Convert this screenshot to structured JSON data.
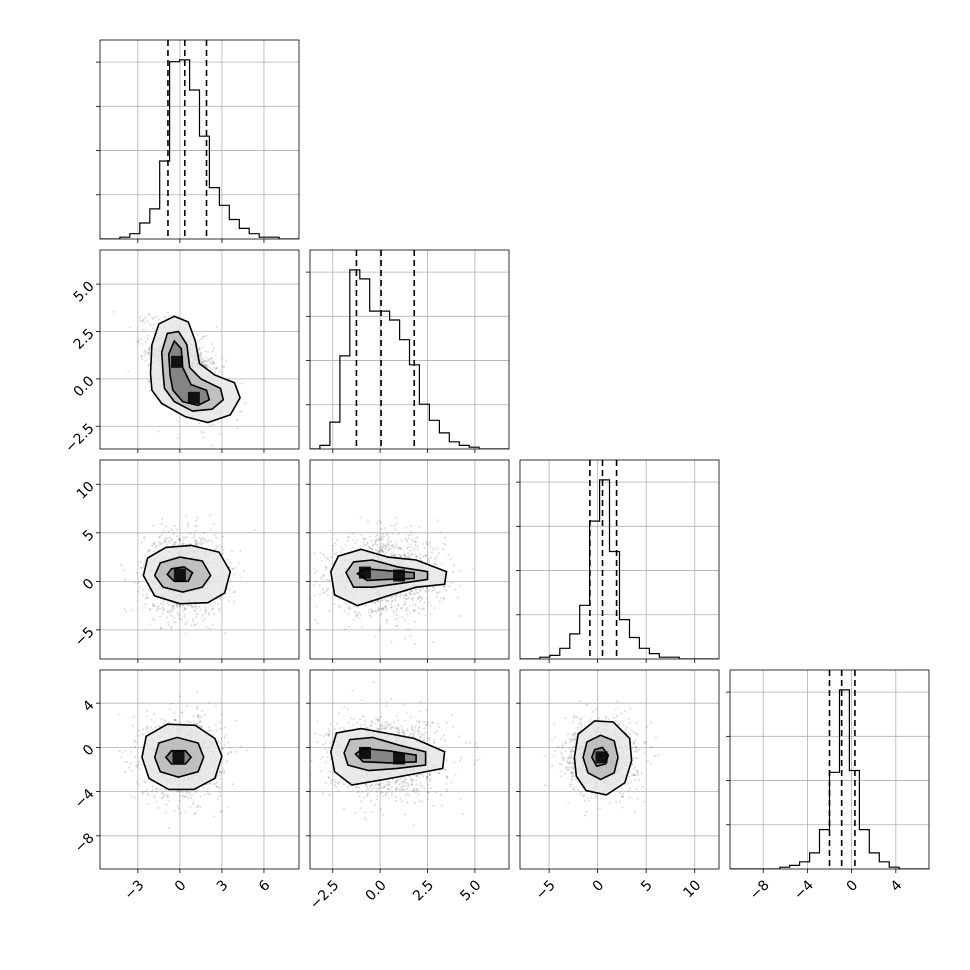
{
  "chart_data": {
    "type": "corner",
    "grid": true,
    "parameters": [
      {
        "index": 0,
        "range": [
          -5.7,
          8.5
        ],
        "ticks": [
          -3,
          0,
          3,
          6
        ],
        "tick_labels": [
          "−3",
          "0",
          "3",
          "6"
        ],
        "hist": {
          "edges_start": -5.7,
          "bin_width": 0.71,
          "counts": [
            0,
            0,
            1,
            3,
            9,
            17,
            44,
            100,
            101,
            84,
            58,
            29,
            19,
            11,
            6,
            3,
            1,
            1,
            0,
            0
          ]
        },
        "quantiles": [
          -0.85,
          0.35,
          1.9
        ]
      },
      {
        "index": 1,
        "range": [
          -3.7,
          6.8
        ],
        "ticks": [
          -2.5,
          0.0,
          2.5,
          5.0
        ],
        "tick_labels": [
          "−2.5",
          "0.0",
          "2.5",
          "5.0"
        ],
        "hist": {
          "edges_start": -3.7,
          "bin_width": 0.525,
          "counts": [
            0,
            2,
            15,
            52,
            100,
            95,
            77,
            77,
            72,
            61,
            47,
            25,
            16,
            9,
            4,
            2,
            1,
            0,
            0,
            0
          ]
        },
        "quantiles": [
          -1.25,
          0.05,
          1.8
        ]
      },
      {
        "index": 2,
        "range": [
          -8,
          12.5
        ],
        "ticks": [
          -5,
          0,
          5,
          10
        ],
        "tick_labels": [
          "−5",
          "0",
          "5",
          "10"
        ],
        "hist": {
          "edges_start": -8,
          "bin_width": 1.025,
          "counts": [
            0,
            0,
            1,
            2,
            6,
            14,
            30,
            77,
            100,
            60,
            22,
            12,
            6,
            3,
            1,
            1,
            0,
            0,
            0,
            0
          ]
        },
        "quantiles": [
          -0.8,
          0.5,
          1.95
        ]
      },
      {
        "index": 3,
        "range": [
          -11,
          7
        ],
        "ticks": [
          -8,
          -4,
          0,
          4
        ],
        "tick_labels": [
          "−8",
          "−4",
          "0",
          "4"
        ],
        "hist": {
          "edges_start": -11,
          "bin_width": 0.9,
          "counts": [
            0,
            0,
            0,
            0,
            0,
            1,
            2,
            4,
            9,
            22,
            54,
            100,
            55,
            22,
            9,
            4,
            1,
            0,
            0,
            0
          ]
        },
        "quantiles": [
          -2.0,
          -0.9,
          0.3
        ]
      }
    ],
    "pairs": [
      {
        "row": 1,
        "col": 0,
        "mean": [
          0.5,
          0.4
        ],
        "spread": [
          1.3,
          1.2
        ],
        "rho": -0.55,
        "cores": [
          [
            -0.2,
            0.9
          ],
          [
            1.0,
            -1.0
          ]
        ],
        "contours": [
          [
            [
              -2.1,
              0.3
            ],
            [
              -2.0,
              1.8
            ],
            [
              -1.5,
              2.9
            ],
            [
              -0.4,
              3.3
            ],
            [
              0.6,
              3.0
            ],
            [
              1.1,
              2.0
            ],
            [
              1.4,
              0.8
            ],
            [
              2.5,
              0.2
            ],
            [
              3.9,
              -0.2
            ],
            [
              4.3,
              -1.0
            ],
            [
              3.6,
              -1.9
            ],
            [
              2.0,
              -2.3
            ],
            [
              0.4,
              -2.0
            ],
            [
              -1.3,
              -1.3
            ],
            [
              -2.0,
              -0.6
            ]
          ],
          [
            [
              -1.2,
              0.3
            ],
            [
              -1.3,
              1.4
            ],
            [
              -0.9,
              2.4
            ],
            [
              -0.1,
              2.5
            ],
            [
              0.5,
              1.8
            ],
            [
              0.7,
              0.6
            ],
            [
              1.5,
              0.0
            ],
            [
              2.9,
              -0.5
            ],
            [
              3.1,
              -1.1
            ],
            [
              2.3,
              -1.6
            ],
            [
              0.9,
              -1.7
            ],
            [
              -0.4,
              -1.2
            ],
            [
              -1.1,
              -0.5
            ]
          ],
          [
            [
              -0.7,
              0.2
            ],
            [
              -0.8,
              1.3
            ],
            [
              -0.4,
              2.0
            ],
            [
              0.1,
              1.6
            ],
            [
              0.2,
              0.6
            ],
            [
              0.8,
              -0.3
            ],
            [
              1.9,
              -0.6
            ],
            [
              2.1,
              -1.1
            ],
            [
              1.3,
              -1.4
            ],
            [
              0.2,
              -1.2
            ],
            [
              -0.5,
              -0.6
            ]
          ]
        ]
      },
      {
        "row": 2,
        "col": 0,
        "mean": [
          0.3,
          0.7
        ],
        "spread": [
          1.4,
          2.1
        ],
        "rho": 0.0,
        "cores": [
          [
            0.0,
            0.7
          ]
        ],
        "contours": [
          [
            [
              -2.6,
              0.6
            ],
            [
              -2.3,
              2.4
            ],
            [
              -1.0,
              3.5
            ],
            [
              0.8,
              3.7
            ],
            [
              2.8,
              3.0
            ],
            [
              3.6,
              1.0
            ],
            [
              3.2,
              -1.2
            ],
            [
              2.0,
              -2.2
            ],
            [
              0.0,
              -2.3
            ],
            [
              -1.8,
              -1.5
            ]
          ],
          [
            [
              -1.8,
              0.6
            ],
            [
              -1.4,
              1.9
            ],
            [
              0.0,
              2.5
            ],
            [
              1.6,
              2.1
            ],
            [
              2.2,
              0.6
            ],
            [
              1.6,
              -0.6
            ],
            [
              0.2,
              -1.1
            ],
            [
              -1.2,
              -0.6
            ]
          ],
          [
            [
              -0.9,
              0.7
            ],
            [
              -0.6,
              1.3
            ],
            [
              0.3,
              1.5
            ],
            [
              0.9,
              0.9
            ],
            [
              0.6,
              0.0
            ],
            [
              -0.4,
              0.0
            ]
          ]
        ]
      },
      {
        "row": 2,
        "col": 1,
        "mean": [
          0.3,
          0.6
        ],
        "spread": [
          1.5,
          2.0
        ],
        "rho": 0.0,
        "cores": [
          [
            -0.8,
            0.9
          ],
          [
            1.0,
            0.6
          ]
        ],
        "contours": [
          [
            [
              -2.6,
              1.0
            ],
            [
              -2.2,
              2.6
            ],
            [
              -1.0,
              3.3
            ],
            [
              0.4,
              2.5
            ],
            [
              1.9,
              2.2
            ],
            [
              3.5,
              1.0
            ],
            [
              3.4,
              -0.3
            ],
            [
              1.9,
              -0.6
            ],
            [
              0.4,
              -1.5
            ],
            [
              -1.2,
              -2.5
            ],
            [
              -2.4,
              -1.4
            ]
          ],
          [
            [
              -1.8,
              0.9
            ],
            [
              -1.4,
              2.0
            ],
            [
              -0.4,
              2.2
            ],
            [
              0.9,
              1.5
            ],
            [
              2.5,
              1.0
            ],
            [
              2.5,
              0.2
            ],
            [
              1.1,
              -0.2
            ],
            [
              -0.4,
              -0.6
            ],
            [
              -1.4,
              -0.6
            ]
          ],
          [
            [
              -1.2,
              0.8
            ],
            [
              -0.8,
              1.3
            ],
            [
              0.4,
              1.1
            ],
            [
              1.8,
              0.9
            ],
            [
              1.8,
              0.3
            ],
            [
              0.4,
              0.2
            ],
            [
              -0.7,
              0.1
            ]
          ]
        ]
      },
      {
        "row": 3,
        "col": 0,
        "mean": [
          0.2,
          -0.9
        ],
        "spread": [
          1.4,
          1.8
        ],
        "rho": 0.0,
        "cores": [
          [
            -0.1,
            -0.9
          ]
        ],
        "contours": [
          [
            [
              -2.7,
              -0.9
            ],
            [
              -2.4,
              1.0
            ],
            [
              -0.9,
              2.1
            ],
            [
              1.1,
              2.0
            ],
            [
              2.5,
              0.8
            ],
            [
              3.0,
              -0.8
            ],
            [
              2.5,
              -2.8
            ],
            [
              1.0,
              -3.8
            ],
            [
              -0.8,
              -3.8
            ],
            [
              -2.2,
              -2.8
            ]
          ],
          [
            [
              -1.8,
              -0.9
            ],
            [
              -1.5,
              0.4
            ],
            [
              -0.2,
              0.9
            ],
            [
              1.3,
              0.4
            ],
            [
              1.7,
              -0.9
            ],
            [
              1.3,
              -2.2
            ],
            [
              -0.1,
              -2.7
            ],
            [
              -1.4,
              -2.2
            ]
          ],
          [
            [
              -1.0,
              -0.9
            ],
            [
              -0.6,
              -0.3
            ],
            [
              0.4,
              -0.3
            ],
            [
              0.8,
              -0.9
            ],
            [
              0.4,
              -1.5
            ],
            [
              -0.6,
              -1.5
            ]
          ]
        ]
      },
      {
        "row": 3,
        "col": 1,
        "mean": [
          0.3,
          -0.9
        ],
        "spread": [
          1.5,
          1.8
        ],
        "rho": 0.0,
        "cores": [
          [
            -0.8,
            -0.5
          ],
          [
            1.0,
            -1.0
          ]
        ],
        "contours": [
          [
            [
              -2.6,
              -0.4
            ],
            [
              -2.3,
              1.3
            ],
            [
              -1.0,
              1.7
            ],
            [
              0.6,
              1.2
            ],
            [
              1.8,
              0.8
            ],
            [
              3.4,
              -0.4
            ],
            [
              3.3,
              -1.9
            ],
            [
              1.8,
              -2.4
            ],
            [
              0.2,
              -2.9
            ],
            [
              -1.5,
              -3.4
            ],
            [
              -2.4,
              -2.2
            ]
          ],
          [
            [
              -1.9,
              -0.5
            ],
            [
              -1.6,
              0.7
            ],
            [
              -0.4,
              0.9
            ],
            [
              1.0,
              0.2
            ],
            [
              2.4,
              -0.4
            ],
            [
              2.4,
              -1.6
            ],
            [
              0.9,
              -1.9
            ],
            [
              -0.6,
              -2.1
            ],
            [
              -1.7,
              -1.6
            ]
          ],
          [
            [
              -1.3,
              -0.6
            ],
            [
              -0.9,
              -0.1
            ],
            [
              0.4,
              -0.3
            ],
            [
              1.9,
              -0.7
            ],
            [
              1.9,
              -1.3
            ],
            [
              0.5,
              -1.4
            ],
            [
              -0.9,
              -1.3
            ]
          ]
        ]
      },
      {
        "row": 3,
        "col": 2,
        "mean": [
          0.4,
          -0.9
        ],
        "spread": [
          1.8,
          1.6
        ],
        "rho": 0.0,
        "cores": [
          [
            0.4,
            -0.9
          ]
        ],
        "contours": [
          [
            [
              -2.4,
              -0.9
            ],
            [
              -2.0,
              1.2
            ],
            [
              -0.3,
              2.4
            ],
            [
              1.6,
              2.3
            ],
            [
              3.3,
              0.8
            ],
            [
              3.5,
              -1.2
            ],
            [
              2.8,
              -3.2
            ],
            [
              0.9,
              -4.3
            ],
            [
              -1.2,
              -3.9
            ],
            [
              -2.2,
              -2.6
            ]
          ],
          [
            [
              -1.5,
              -0.9
            ],
            [
              -1.1,
              0.5
            ],
            [
              0.3,
              1.1
            ],
            [
              1.7,
              0.6
            ],
            [
              2.1,
              -0.9
            ],
            [
              1.7,
              -2.3
            ],
            [
              0.3,
              -2.9
            ],
            [
              -1.0,
              -2.3
            ]
          ],
          [
            [
              -0.6,
              -0.9
            ],
            [
              -0.3,
              -0.2
            ],
            [
              0.5,
              0.0
            ],
            [
              1.1,
              -0.7
            ],
            [
              0.8,
              -1.5
            ],
            [
              -0.1,
              -1.7
            ]
          ]
        ]
      }
    ]
  }
}
